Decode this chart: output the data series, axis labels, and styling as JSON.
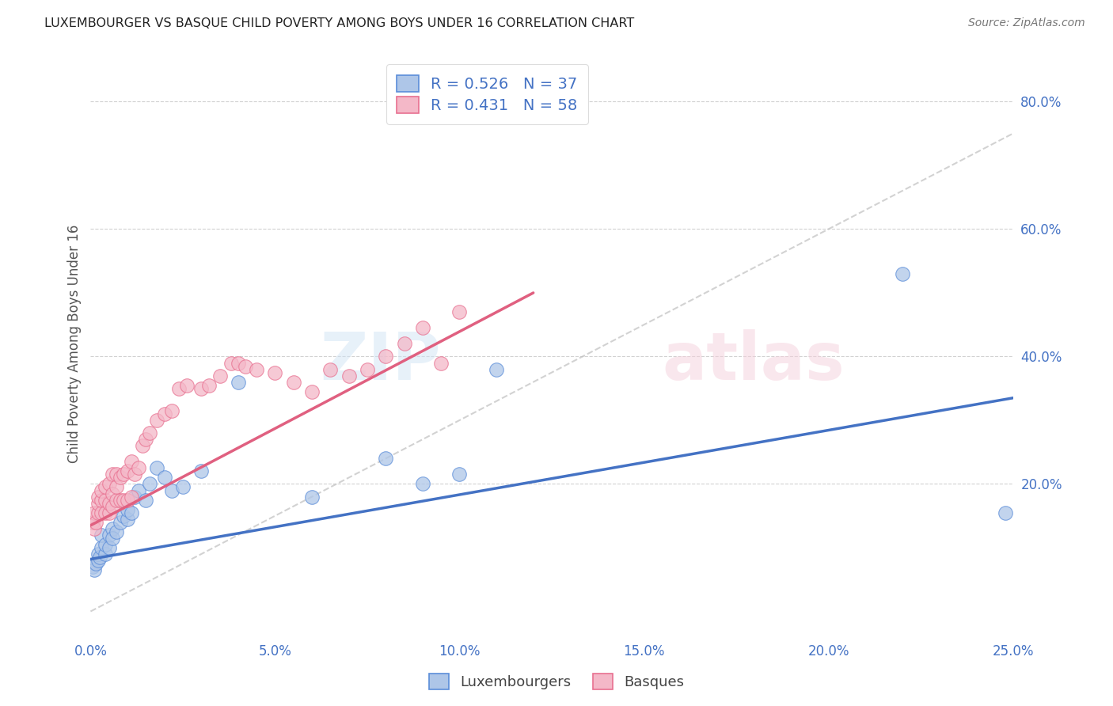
{
  "title": "LUXEMBOURGER VS BASQUE CHILD POVERTY AMONG BOYS UNDER 16 CORRELATION CHART",
  "source": "Source: ZipAtlas.com",
  "ylabel": "Child Poverty Among Boys Under 16",
  "xlim": [
    0.0,
    0.25
  ],
  "ylim": [
    -0.04,
    0.88
  ],
  "xtick_labels": [
    "0.0%",
    "5.0%",
    "10.0%",
    "15.0%",
    "20.0%",
    "25.0%"
  ],
  "xtick_vals": [
    0.0,
    0.05,
    0.1,
    0.15,
    0.2,
    0.25
  ],
  "ytick_labels": [
    "20.0%",
    "40.0%",
    "60.0%",
    "80.0%"
  ],
  "ytick_vals": [
    0.2,
    0.4,
    0.6,
    0.8
  ],
  "lux_color": "#aec6e8",
  "lux_edge_color": "#5b8dd9",
  "lux_line_color": "#4472c4",
  "basque_color": "#f4b8c8",
  "basque_edge_color": "#e87090",
  "basque_line_color": "#e06080",
  "ref_line_color": "#c0c0c0",
  "lux_R": 0.526,
  "lux_N": 37,
  "basque_R": 0.431,
  "basque_N": 58,
  "legend_label_color": "#4472c4",
  "watermark_text": "ZIPatlas",
  "lux_scatter_x": [
    0.0005,
    0.001,
    0.0015,
    0.002,
    0.002,
    0.0025,
    0.003,
    0.003,
    0.004,
    0.004,
    0.005,
    0.005,
    0.006,
    0.006,
    0.007,
    0.008,
    0.009,
    0.01,
    0.01,
    0.011,
    0.012,
    0.013,
    0.015,
    0.016,
    0.018,
    0.02,
    0.022,
    0.025,
    0.03,
    0.04,
    0.06,
    0.08,
    0.09,
    0.1,
    0.11,
    0.22,
    0.248
  ],
  "lux_scatter_y": [
    0.07,
    0.065,
    0.075,
    0.08,
    0.09,
    0.085,
    0.1,
    0.12,
    0.09,
    0.105,
    0.12,
    0.1,
    0.13,
    0.115,
    0.125,
    0.14,
    0.15,
    0.145,
    0.16,
    0.155,
    0.18,
    0.19,
    0.175,
    0.2,
    0.225,
    0.21,
    0.19,
    0.195,
    0.22,
    0.36,
    0.18,
    0.24,
    0.2,
    0.215,
    0.38,
    0.53,
    0.155
  ],
  "basque_scatter_x": [
    0.0005,
    0.001,
    0.001,
    0.0015,
    0.002,
    0.002,
    0.002,
    0.003,
    0.003,
    0.003,
    0.004,
    0.004,
    0.004,
    0.005,
    0.005,
    0.005,
    0.006,
    0.006,
    0.006,
    0.007,
    0.007,
    0.007,
    0.008,
    0.008,
    0.009,
    0.009,
    0.01,
    0.01,
    0.011,
    0.011,
    0.012,
    0.013,
    0.014,
    0.015,
    0.016,
    0.018,
    0.02,
    0.022,
    0.024,
    0.026,
    0.03,
    0.032,
    0.035,
    0.038,
    0.04,
    0.042,
    0.045,
    0.05,
    0.055,
    0.06,
    0.065,
    0.07,
    0.075,
    0.08,
    0.085,
    0.09,
    0.095,
    0.1
  ],
  "basque_scatter_y": [
    0.14,
    0.13,
    0.155,
    0.14,
    0.155,
    0.17,
    0.18,
    0.155,
    0.175,
    0.19,
    0.155,
    0.175,
    0.195,
    0.155,
    0.17,
    0.2,
    0.165,
    0.185,
    0.215,
    0.175,
    0.195,
    0.215,
    0.175,
    0.21,
    0.175,
    0.215,
    0.175,
    0.22,
    0.18,
    0.235,
    0.215,
    0.225,
    0.26,
    0.27,
    0.28,
    0.3,
    0.31,
    0.315,
    0.35,
    0.355,
    0.35,
    0.355,
    0.37,
    0.39,
    0.39,
    0.385,
    0.38,
    0.375,
    0.36,
    0.345,
    0.38,
    0.37,
    0.38,
    0.4,
    0.42,
    0.445,
    0.39,
    0.47
  ],
  "lux_trend_x": [
    0.0,
    0.25
  ],
  "lux_trend_y": [
    0.082,
    0.335
  ],
  "basque_trend_x": [
    0.0,
    0.12
  ],
  "basque_trend_y": [
    0.135,
    0.5
  ],
  "ref_line_x": [
    0.0,
    0.25
  ],
  "ref_line_y": [
    0.0,
    0.75
  ]
}
